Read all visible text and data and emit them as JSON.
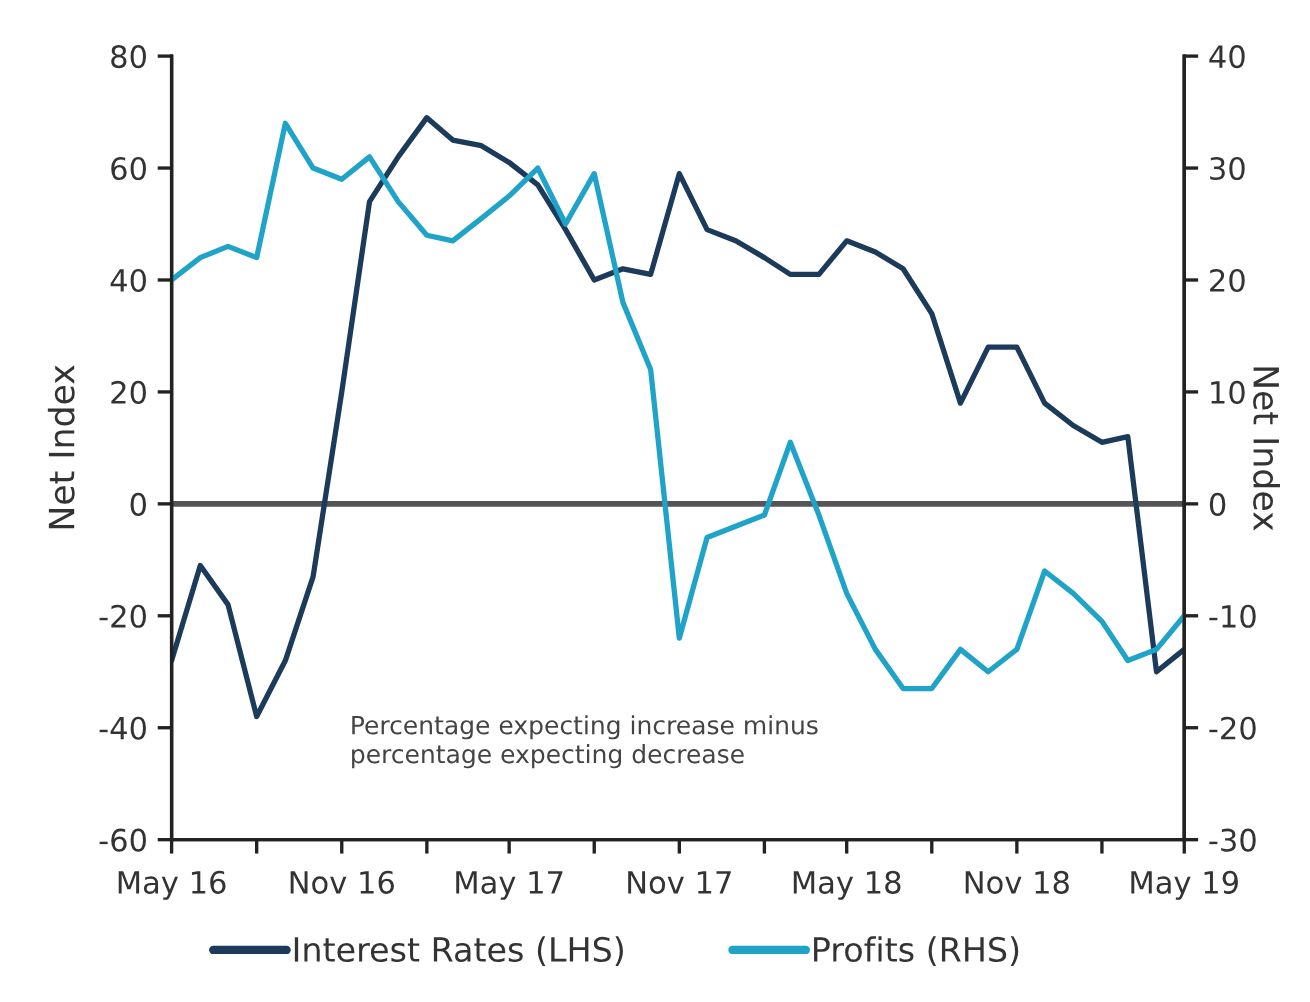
{
  "chart_data": {
    "type": "line",
    "ylabel": "Net Index",
    "y2label": "Net Index",
    "annotations": [
      "Percentage expecting increase minus\npercentage expecting decrease"
    ],
    "x": [
      "2016-05",
      "2016-06",
      "2016-07",
      "2016-08",
      "2016-09",
      "2016-10",
      "2016-11",
      "2016-12",
      "2017-01",
      "2017-02",
      "2017-03",
      "2017-04",
      "2017-05",
      "2017-06",
      "2017-07",
      "2017-08",
      "2017-09",
      "2017-10",
      "2017-11",
      "2017-12",
      "2018-01",
      "2018-02",
      "2018-03",
      "2018-04",
      "2018-05",
      "2018-06",
      "2018-07",
      "2018-08",
      "2018-09",
      "2018-10",
      "2018-11",
      "2018-12",
      "2019-01",
      "2019-02",
      "2019-03",
      "2019-04",
      "2019-05"
    ],
    "series": [
      {
        "name": "Interest Rates (LHS)",
        "color": "#1c3a5a",
        "values": [
          -28,
          -11,
          -18,
          -38,
          -28,
          -13,
          20,
          54,
          62,
          69,
          65,
          64,
          61,
          57,
          49,
          40,
          42,
          41,
          59,
          49,
          47,
          44,
          41,
          41,
          47,
          45,
          42,
          34,
          18,
          28,
          28,
          18,
          14,
          11,
          12,
          -30,
          -26
        ]
      },
      {
        "name": "Profits (RHS)",
        "color": "#1fa3c8",
        "axis": "y2",
        "values": [
          20,
          22,
          23,
          22,
          34,
          30,
          29,
          31,
          27,
          24,
          23.5,
          25.5,
          27.5,
          30,
          25,
          29.5,
          18,
          12,
          -12,
          -3,
          -2,
          -1,
          5.5,
          -1,
          -8,
          -13,
          -16.5,
          -16.5,
          -13,
          -15,
          -13,
          -6,
          -8,
          -10.5,
          -14,
          -13,
          -10
        ]
      }
    ],
    "xlim": [
      "2016-05",
      "2019-05"
    ],
    "xticks": [
      {
        "value": "2016-05",
        "label": "May 16"
      },
      {
        "value": "2016-08",
        "label": null
      },
      {
        "value": "2016-11",
        "label": "Nov 16"
      },
      {
        "value": "2017-02",
        "label": null
      },
      {
        "value": "2017-05",
        "label": "May 17"
      },
      {
        "value": "2017-08",
        "label": null
      },
      {
        "value": "2017-11",
        "label": "Nov 17"
      },
      {
        "value": "2018-02",
        "label": null
      },
      {
        "value": "2018-05",
        "label": "May 18"
      },
      {
        "value": "2018-08",
        "label": null
      },
      {
        "value": "2018-11",
        "label": "Nov 18"
      },
      {
        "value": "2019-02",
        "label": null
      },
      {
        "value": "2019-05",
        "label": "May 19"
      }
    ],
    "ylim": [
      -60,
      80
    ],
    "yticks": [
      -60,
      -40,
      -20,
      0,
      20,
      40,
      60,
      80
    ],
    "y2lim": [
      -30,
      40
    ],
    "y2ticks": [
      -30,
      -20,
      -10,
      0,
      10,
      20,
      30,
      40
    ],
    "ref_lines": [
      {
        "axis": "y",
        "value": 0,
        "color": "#555555"
      }
    ],
    "grid": false,
    "legend": "bottom"
  }
}
